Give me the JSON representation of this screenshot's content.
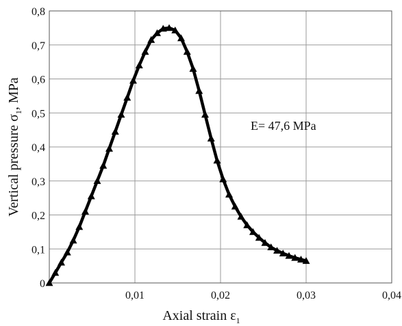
{
  "chart_data": {
    "type": "line",
    "title": "",
    "xlabel": "Axial strain ε",
    "xlabel_subscript": "1",
    "ylabel_prefix": "Vertical pressure σ",
    "ylabel_subscript": "1",
    "ylabel_suffix": ", MPa",
    "xlim": [
      0,
      0.04
    ],
    "ylim": [
      0,
      0.8
    ],
    "x_ticks": [
      {
        "value": 0.01,
        "label": "0,01"
      },
      {
        "value": 0.02,
        "label": "0,02"
      },
      {
        "value": 0.03,
        "label": "0,03"
      },
      {
        "value": 0.04,
        "label": "0,04"
      }
    ],
    "y_ticks": [
      {
        "value": 0.0,
        "label": "0"
      },
      {
        "value": 0.1,
        "label": "0,1"
      },
      {
        "value": 0.2,
        "label": "0,2"
      },
      {
        "value": 0.3,
        "label": "0,3"
      },
      {
        "value": 0.4,
        "label": "0,4"
      },
      {
        "value": 0.5,
        "label": "0,5"
      },
      {
        "value": 0.6,
        "label": "0,6"
      },
      {
        "value": 0.7,
        "label": "0,7"
      },
      {
        "value": 0.8,
        "label": "0,8"
      }
    ],
    "grid": true,
    "annotation": "E= 47,6 MPa",
    "marker": "triangle",
    "line_color": "#000000",
    "series": [
      {
        "points": [
          [
            0.0,
            0.0
          ],
          [
            0.0007,
            0.03
          ],
          [
            0.0014,
            0.06
          ],
          [
            0.0021,
            0.09
          ],
          [
            0.0028,
            0.125
          ],
          [
            0.0035,
            0.165
          ],
          [
            0.0042,
            0.21
          ],
          [
            0.0049,
            0.255
          ],
          [
            0.0056,
            0.3
          ],
          [
            0.0063,
            0.345
          ],
          [
            0.007,
            0.395
          ],
          [
            0.0077,
            0.445
          ],
          [
            0.0084,
            0.495
          ],
          [
            0.0091,
            0.545
          ],
          [
            0.0098,
            0.595
          ],
          [
            0.0105,
            0.64
          ],
          [
            0.0112,
            0.68
          ],
          [
            0.0119,
            0.715
          ],
          [
            0.0126,
            0.735
          ],
          [
            0.0133,
            0.748
          ],
          [
            0.014,
            0.75
          ],
          [
            0.0147,
            0.743
          ],
          [
            0.0154,
            0.72
          ],
          [
            0.0161,
            0.68
          ],
          [
            0.0168,
            0.63
          ],
          [
            0.0175,
            0.565
          ],
          [
            0.0182,
            0.495
          ],
          [
            0.0189,
            0.425
          ],
          [
            0.0196,
            0.36
          ],
          [
            0.0203,
            0.305
          ],
          [
            0.021,
            0.26
          ],
          [
            0.0217,
            0.225
          ],
          [
            0.0224,
            0.195
          ],
          [
            0.0231,
            0.17
          ],
          [
            0.0238,
            0.15
          ],
          [
            0.0245,
            0.133
          ],
          [
            0.0252,
            0.118
          ],
          [
            0.0259,
            0.105
          ],
          [
            0.0266,
            0.095
          ],
          [
            0.0273,
            0.087
          ],
          [
            0.028,
            0.08
          ],
          [
            0.0287,
            0.074
          ],
          [
            0.0294,
            0.069
          ],
          [
            0.03,
            0.065
          ]
        ]
      }
    ]
  }
}
